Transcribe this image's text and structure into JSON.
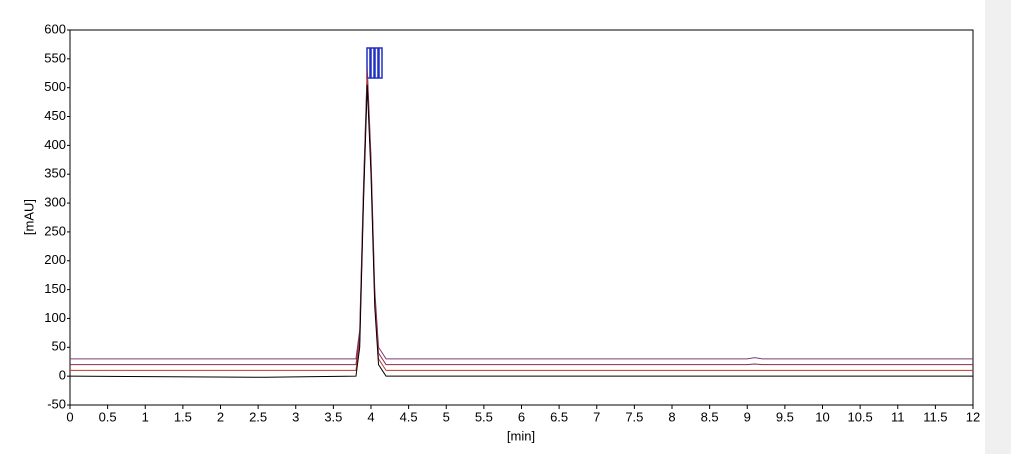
{
  "chart_data": {
    "type": "line",
    "xlabel": "[min]",
    "ylabel": "[mAU]",
    "x": [
      0,
      2.6,
      3.8,
      3.85,
      3.9,
      3.95,
      4.0,
      4.05,
      4.1,
      4.2,
      9.0,
      9.1,
      9.2,
      12
    ],
    "series": [
      {
        "color": "#7a3c7a",
        "values": [
          30,
          30,
          30,
          80,
          330,
          535,
          380,
          150,
          50,
          30,
          30,
          32,
          30,
          30
        ]
      },
      {
        "color": "#8b2a4a",
        "values": [
          20,
          20,
          20,
          70,
          320,
          525,
          370,
          140,
          40,
          20,
          20,
          21,
          20,
          20
        ]
      },
      {
        "color": "#c0392b",
        "values": [
          10,
          10,
          10,
          60,
          310,
          515,
          360,
          130,
          30,
          10,
          10,
          10,
          10,
          10
        ]
      },
      {
        "color": "#000000",
        "values": [
          0,
          -2,
          0,
          50,
          300,
          505,
          350,
          120,
          20,
          0,
          0,
          0,
          0,
          0
        ]
      }
    ],
    "xlim": [
      0,
      12
    ],
    "ylim": [
      -50,
      600
    ],
    "xticks": [
      0,
      0.5,
      1,
      1.5,
      2,
      2.5,
      3,
      3.5,
      4,
      4.5,
      5,
      5.5,
      6,
      6.5,
      7,
      7.5,
      8,
      8.5,
      9,
      9.5,
      10,
      10.5,
      11,
      11.5,
      12
    ],
    "yticks": [
      -50,
      0,
      50,
      100,
      150,
      200,
      250,
      300,
      350,
      400,
      450,
      500,
      550,
      600
    ],
    "grid": false
  }
}
